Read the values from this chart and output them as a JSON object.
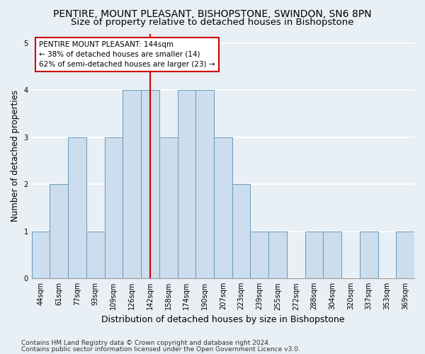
{
  "title": "PENTIRE, MOUNT PLEASANT, BISHOPSTONE, SWINDON, SN6 8PN",
  "subtitle": "Size of property relative to detached houses in Bishopstone",
  "xlabel": "Distribution of detached houses by size in Bishopstone",
  "ylabel": "Number of detached properties",
  "categories": [
    "44sqm",
    "61sqm",
    "77sqm",
    "93sqm",
    "109sqm",
    "126sqm",
    "142sqm",
    "158sqm",
    "174sqm",
    "190sqm",
    "207sqm",
    "223sqm",
    "239sqm",
    "255sqm",
    "272sqm",
    "288sqm",
    "304sqm",
    "320sqm",
    "337sqm",
    "353sqm",
    "369sqm"
  ],
  "values": [
    1,
    2,
    3,
    1,
    3,
    4,
    4,
    3,
    4,
    4,
    3,
    2,
    1,
    1,
    0,
    1,
    1,
    0,
    1,
    0,
    1
  ],
  "bar_color": "#ccdded",
  "bar_edge_color": "#6699bb",
  "highlight_index": 6,
  "highlight_line_color": "#cc0000",
  "ylim": [
    0,
    5.2
  ],
  "yticks": [
    0,
    1,
    2,
    3,
    4,
    5
  ],
  "annotation_text": "PENTIRE MOUNT PLEASANT: 144sqm\n← 38% of detached houses are smaller (14)\n62% of semi-detached houses are larger (23) →",
  "annotation_box_color": "#ffffff",
  "annotation_box_edge": "#cc0000",
  "footer_line1": "Contains HM Land Registry data © Crown copyright and database right 2024.",
  "footer_line2": "Contains public sector information licensed under the Open Government Licence v3.0.",
  "background_color": "#e8eff5",
  "grid_color": "#ffffff",
  "title_fontsize": 10,
  "subtitle_fontsize": 9.5,
  "xlabel_fontsize": 9,
  "ylabel_fontsize": 8.5,
  "tick_fontsize": 7,
  "annotation_fontsize": 7.5,
  "footer_fontsize": 6.5
}
